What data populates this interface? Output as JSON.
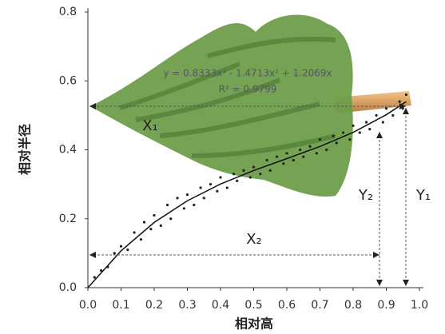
{
  "chart_data": {
    "type": "scatter",
    "x_label": "相对高",
    "y_label": "相对半径",
    "xlim": [
      0,
      1.0
    ],
    "ylim": [
      0,
      0.8
    ],
    "xticks": [
      {
        "value": 0,
        "label": "0.0"
      },
      0.1,
      0.2,
      0.3,
      0.4,
      0.5,
      0.6,
      0.7,
      0.8,
      0.9,
      {
        "value": 1.0,
        "label": "1.0"
      }
    ],
    "yticks": [
      {
        "value": 0,
        "label": "0.0"
      },
      0.2,
      0.4,
      0.6,
      0.8
    ],
    "series": [
      {
        "type": "scatter",
        "color": "#222",
        "x": [
          0.02,
          0.04,
          0.06,
          0.08,
          0.1,
          0.12,
          0.14,
          0.16,
          0.17,
          0.19,
          0.2,
          0.22,
          0.24,
          0.25,
          0.27,
          0.29,
          0.3,
          0.32,
          0.34,
          0.35,
          0.37,
          0.39,
          0.4,
          0.42,
          0.44,
          0.45,
          0.47,
          0.49,
          0.5,
          0.52,
          0.54,
          0.55,
          0.57,
          0.59,
          0.6,
          0.62,
          0.64,
          0.65,
          0.67,
          0.69,
          0.7,
          0.72,
          0.74,
          0.75,
          0.77,
          0.79,
          0.8,
          0.82,
          0.84,
          0.85,
          0.87,
          0.89,
          0.9,
          0.92,
          0.94,
          0.95,
          0.96
        ],
        "values": [
          0.03,
          0.05,
          0.06,
          0.1,
          0.12,
          0.11,
          0.16,
          0.14,
          0.19,
          0.17,
          0.21,
          0.18,
          0.24,
          0.2,
          0.26,
          0.23,
          0.27,
          0.24,
          0.29,
          0.26,
          0.3,
          0.28,
          0.32,
          0.29,
          0.33,
          0.31,
          0.34,
          0.32,
          0.35,
          0.33,
          0.37,
          0.34,
          0.38,
          0.36,
          0.39,
          0.37,
          0.4,
          0.38,
          0.41,
          0.39,
          0.43,
          0.4,
          0.44,
          0.42,
          0.45,
          0.43,
          0.47,
          0.45,
          0.48,
          0.46,
          0.5,
          0.48,
          0.52,
          0.5,
          0.54,
          0.52,
          0.56
        ]
      },
      {
        "type": "line",
        "color": "#111",
        "x": [
          0,
          0.1,
          0.2,
          0.3,
          0.4,
          0.5,
          0.6,
          0.7,
          0.8,
          0.9,
          0.96
        ],
        "values": [
          0,
          0.1068,
          0.1892,
          0.2522,
          0.3007,
          0.3398,
          0.3745,
          0.4097,
          0.4505,
          0.5019,
          0.5398
        ]
      }
    ],
    "annotations": {
      "equation": "y = 0.8333x³ - 1.4713x² + 1.2069x",
      "r2": "R² = 0.9799",
      "x1": "X₁",
      "x2": "X₂",
      "y1": "Y₁",
      "y2": "Y₂"
    }
  }
}
